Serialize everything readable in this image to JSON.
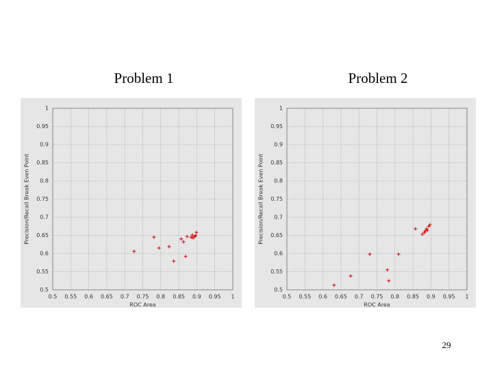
{
  "chart_data": [
    {
      "type": "scatter",
      "title": "Problem 1",
      "x_label": "ROC Area",
      "y_label": "Precision/Recall Break Even Point",
      "xlim": [
        0.5,
        1
      ],
      "ylim": [
        0.5,
        1
      ],
      "xticks": [
        0.5,
        0.55,
        0.6,
        0.65,
        0.7,
        0.75,
        0.8,
        0.85,
        0.9,
        0.95,
        1
      ],
      "yticks": [
        0.5,
        0.55,
        0.6,
        0.65,
        0.7,
        0.75,
        0.8,
        0.85,
        0.9,
        0.95,
        1
      ],
      "grid": true,
      "color": "#cc0000",
      "x": [
        0.726,
        0.781,
        0.795,
        0.823,
        0.836,
        0.857,
        0.863,
        0.869,
        0.873,
        0.884,
        0.888,
        0.894,
        0.899,
        0.89,
        0.897
      ],
      "values": [
        0.606,
        0.645,
        0.615,
        0.619,
        0.579,
        0.64,
        0.632,
        0.592,
        0.647,
        0.645,
        0.651,
        0.647,
        0.658,
        0.643,
        0.649
      ]
    },
    {
      "type": "scatter",
      "title": "Problem 2",
      "x_label": "ROC Area",
      "y_label": "Precision/Recall Break Even Point",
      "xlim": [
        0.5,
        1
      ],
      "ylim": [
        0.5,
        1
      ],
      "xticks": [
        0.5,
        0.55,
        0.6,
        0.65,
        0.7,
        0.75,
        0.8,
        0.85,
        0.9,
        0.95,
        1
      ],
      "yticks": [
        0.5,
        0.55,
        0.6,
        0.65,
        0.7,
        0.75,
        0.8,
        0.85,
        0.9,
        0.95,
        1
      ],
      "grid": true,
      "color": "#cc0000",
      "x": [
        0.631,
        0.677,
        0.73,
        0.779,
        0.783,
        0.81,
        0.857,
        0.876,
        0.882,
        0.888,
        0.894,
        0.897,
        0.884,
        0.89
      ],
      "values": [
        0.513,
        0.538,
        0.598,
        0.555,
        0.525,
        0.598,
        0.668,
        0.653,
        0.658,
        0.668,
        0.675,
        0.679,
        0.662,
        0.664
      ]
    }
  ],
  "page_number": "29"
}
